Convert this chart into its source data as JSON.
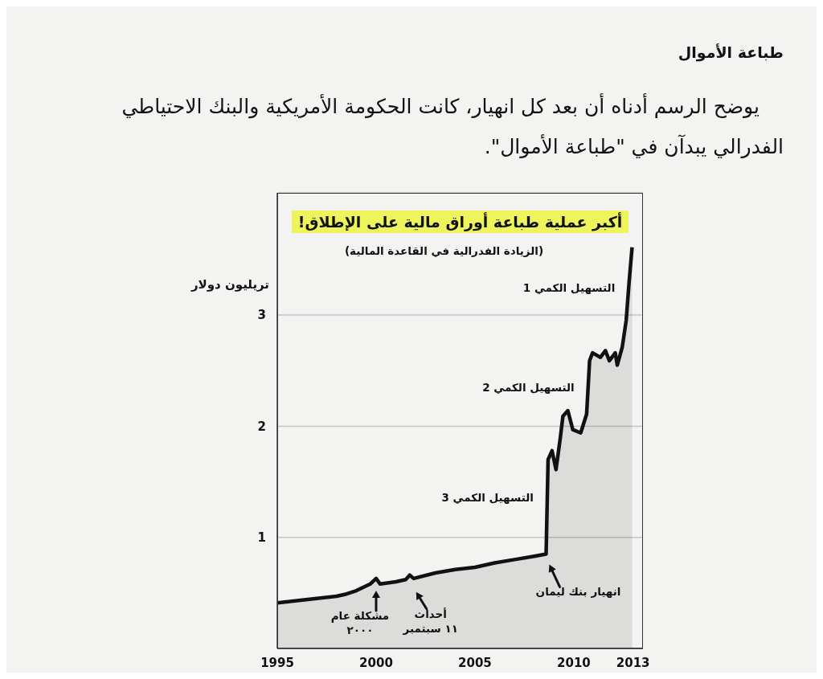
{
  "chart_data": {
    "type": "area",
    "title": "أكبر عملية طباعة أوراق مالية على الإطلاق!",
    "subtitle": "(الزيادة الفدرالية في القاعدة المالية)",
    "ylabel": "تريليون دولار",
    "annotations": [
      "طباعة الأموال",
      "يوضح الرسم أدناه أن بعد كل انهيار، كانت الحكومة الأمريكية والبنك الاحتياطي الفدرالي يبدآن في \"طباعة الأموال\".",
      {
        "text": "التسهيل الكمي 1",
        "x": 2012.78,
        "y": 3.25
      },
      {
        "text": "التسهيل الكمي 2",
        "x": 2010.72,
        "y": 2.35
      },
      {
        "text": "التسهيل الكمي 3",
        "x": 2008.66,
        "y": 1.36
      },
      {
        "text": "مشكلة عام\n٢٠٠٠",
        "x": 2000,
        "y": 0.63
      },
      {
        "text": "أحداث\n١١ سبتمبر",
        "x": 2001.7,
        "y": 0.66
      },
      {
        "text": "انهيار بنك ليمان",
        "x": 2008.6,
        "y": 0.85
      }
    ],
    "x": [
      1995,
      1996,
      1997,
      1998,
      1998.5,
      1999,
      1999.7,
      2000,
      2000.2,
      2001,
      2001.5,
      2001.7,
      2001.9,
      2003,
      2004,
      2005,
      2006,
      2007,
      2008,
      2008.6,
      2008.7,
      2008.9,
      2009.1,
      2009.3,
      2009.45,
      2009.7,
      2009.95,
      2010.35,
      2010.65,
      2010.8,
      2010.95,
      2011.35,
      2011.6,
      2011.8,
      2012.1,
      2012.2,
      2012.45,
      2012.65,
      2012.8,
      2012.95
    ],
    "series": [
      {
        "color": "#111111",
        "values": [
          0.41,
          0.43,
          0.45,
          0.47,
          0.49,
          0.52,
          0.58,
          0.63,
          0.58,
          0.6,
          0.62,
          0.66,
          0.63,
          0.68,
          0.71,
          0.73,
          0.77,
          0.8,
          0.83,
          0.85,
          1.7,
          1.78,
          1.61,
          1.87,
          2.09,
          2.14,
          1.97,
          1.94,
          2.11,
          2.59,
          2.66,
          2.62,
          2.68,
          2.59,
          2.66,
          2.55,
          2.71,
          2.95,
          3.3,
          3.61
        ]
      }
    ],
    "xlim": [
      1995,
      2013.5
    ],
    "ylim": [
      0,
      4.1
    ],
    "xticks": [
      1995,
      2000,
      2005,
      2010,
      2013
    ],
    "yticks": [
      1,
      2,
      3
    ],
    "grid": "y"
  }
}
